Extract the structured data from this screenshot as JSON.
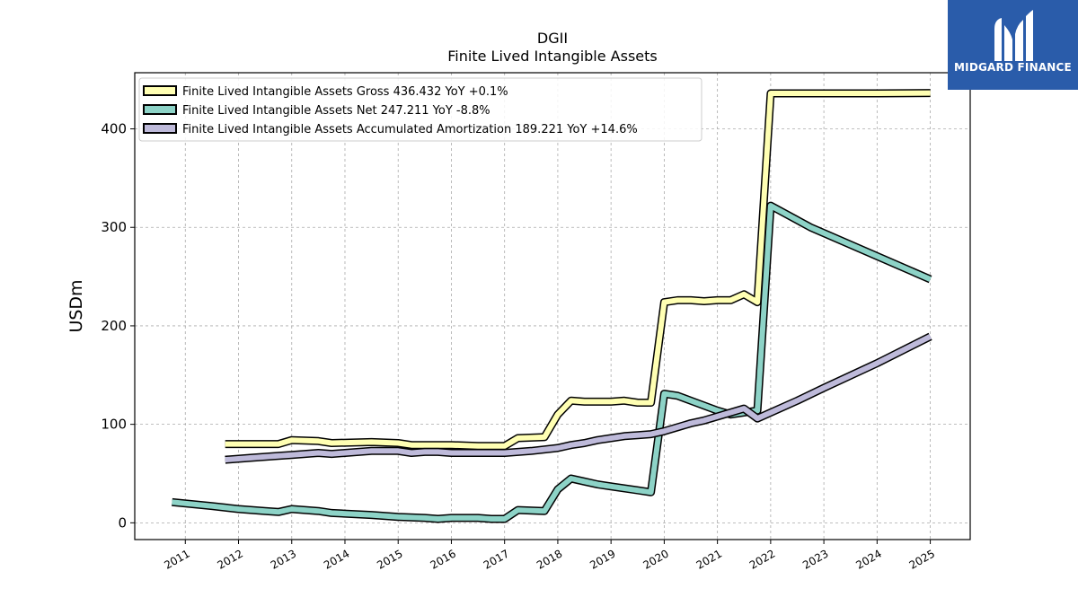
{
  "brand": {
    "name": "MIDGARD FINANCE",
    "background": "#2a5caa",
    "icon": "midgard-m-logo-icon"
  },
  "chart_data": {
    "type": "line",
    "title": "DGII",
    "subtitle": "Finite Lived Intangible Assets",
    "xlabel": "",
    "ylabel": "USDm",
    "xlim": [
      2010.05,
      2025.75
    ],
    "ylim": [
      -17,
      457
    ],
    "yticks": [
      0,
      100,
      200,
      300,
      400
    ],
    "xticks": [
      "2011",
      "2012",
      "2013",
      "2014",
      "2015",
      "2016",
      "2017",
      "2018",
      "2019",
      "2020",
      "2021",
      "2022",
      "2023",
      "2024",
      "2025"
    ],
    "grid": true,
    "legend_position": "top-left",
    "series": [
      {
        "name": "Finite Lived Intangible Assets Gross  436.432 YoY +0.1%",
        "color": "#ffffb3",
        "points": [
          [
            2011.75,
            80
          ],
          [
            2012.75,
            80
          ],
          [
            2013.0,
            84
          ],
          [
            2013.5,
            83
          ],
          [
            2013.75,
            81
          ],
          [
            2014.5,
            82
          ],
          [
            2015.0,
            81
          ],
          [
            2015.25,
            79
          ],
          [
            2015.75,
            79
          ],
          [
            2016.0,
            79
          ],
          [
            2016.5,
            78
          ],
          [
            2017.0,
            78
          ],
          [
            2017.25,
            86
          ],
          [
            2017.75,
            87
          ],
          [
            2018.0,
            110
          ],
          [
            2018.25,
            124
          ],
          [
            2018.5,
            123
          ],
          [
            2019.0,
            123
          ],
          [
            2019.25,
            124
          ],
          [
            2019.5,
            122
          ],
          [
            2019.75,
            122
          ],
          [
            2020.0,
            224
          ],
          [
            2020.25,
            226
          ],
          [
            2020.5,
            226
          ],
          [
            2020.75,
            225
          ],
          [
            2021.0,
            226
          ],
          [
            2021.25,
            226
          ],
          [
            2021.5,
            232
          ],
          [
            2021.75,
            224
          ],
          [
            2022.0,
            436
          ],
          [
            2023.0,
            436
          ],
          [
            2024.0,
            436
          ],
          [
            2025.0,
            436.432
          ]
        ]
      },
      {
        "name": "Finite Lived Intangible Assets Net  247.211 YoY -8.8%",
        "color": "#8dd3c7",
        "points": [
          [
            2010.75,
            21
          ],
          [
            2011.5,
            17
          ],
          [
            2012.0,
            14
          ],
          [
            2012.5,
            12
          ],
          [
            2012.75,
            11
          ],
          [
            2013.0,
            14
          ],
          [
            2013.5,
            12
          ],
          [
            2013.75,
            10
          ],
          [
            2014.5,
            8
          ],
          [
            2015.0,
            6
          ],
          [
            2015.5,
            5
          ],
          [
            2015.75,
            4
          ],
          [
            2016.0,
            5
          ],
          [
            2016.5,
            5
          ],
          [
            2016.75,
            4
          ],
          [
            2017.0,
            4
          ],
          [
            2017.25,
            13
          ],
          [
            2017.75,
            12
          ],
          [
            2018.0,
            34
          ],
          [
            2018.25,
            45
          ],
          [
            2018.5,
            42
          ],
          [
            2018.75,
            39
          ],
          [
            2019.0,
            37
          ],
          [
            2019.5,
            33
          ],
          [
            2019.75,
            31
          ],
          [
            2020.0,
            131
          ],
          [
            2020.25,
            129
          ],
          [
            2020.5,
            124
          ],
          [
            2021.0,
            114
          ],
          [
            2021.25,
            110
          ],
          [
            2021.75,
            114
          ],
          [
            2022.0,
            322
          ],
          [
            2022.75,
            300
          ],
          [
            2025.0,
            247.211
          ]
        ]
      },
      {
        "name": "Finite Lived Intangible Assets Accumulated Amortization  189.221 YoY +14.6%",
        "color": "#bebada",
        "points": [
          [
            2011.75,
            64
          ],
          [
            2012.25,
            66
          ],
          [
            2012.75,
            68
          ],
          [
            2013.0,
            69
          ],
          [
            2013.25,
            70
          ],
          [
            2013.5,
            71
          ],
          [
            2013.75,
            70
          ],
          [
            2014.0,
            71
          ],
          [
            2014.5,
            73
          ],
          [
            2015.0,
            73
          ],
          [
            2015.25,
            71
          ],
          [
            2015.5,
            72
          ],
          [
            2015.75,
            72
          ],
          [
            2016.0,
            71
          ],
          [
            2016.5,
            71
          ],
          [
            2017.0,
            71
          ],
          [
            2017.5,
            73
          ],
          [
            2018.0,
            76
          ],
          [
            2018.25,
            79
          ],
          [
            2018.5,
            81
          ],
          [
            2018.75,
            84
          ],
          [
            2019.0,
            86
          ],
          [
            2019.25,
            88
          ],
          [
            2019.5,
            89
          ],
          [
            2019.75,
            90
          ],
          [
            2020.0,
            93
          ],
          [
            2020.25,
            97
          ],
          [
            2020.5,
            101
          ],
          [
            2020.75,
            104
          ],
          [
            2021.0,
            108
          ],
          [
            2021.25,
            112
          ],
          [
            2021.5,
            116
          ],
          [
            2021.75,
            106
          ],
          [
            2022.0,
            112
          ],
          [
            2022.5,
            124
          ],
          [
            2023.0,
            137
          ],
          [
            2024.0,
            162
          ],
          [
            2025.0,
            189.221
          ]
        ]
      }
    ]
  }
}
